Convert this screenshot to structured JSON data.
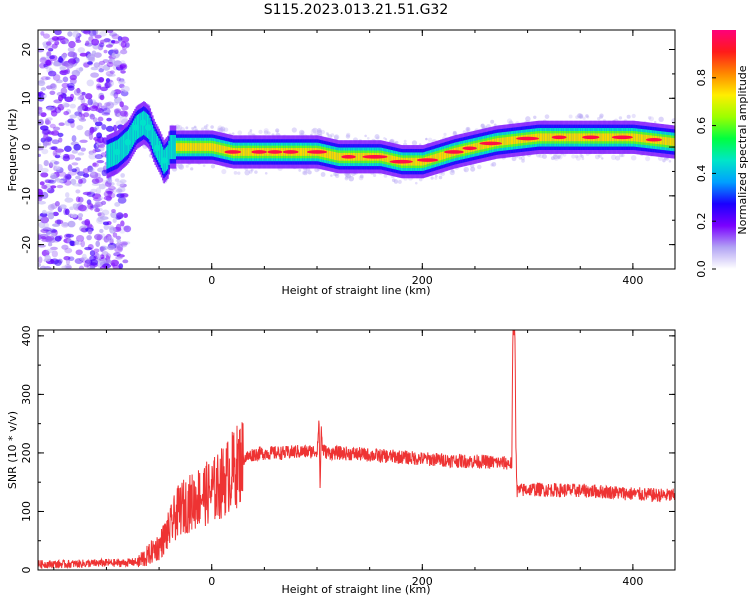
{
  "title": "S115.2023.013.21.51.G32",
  "chart_data": [
    {
      "type": "heatmap",
      "xlabel": "Height of straight line (km)",
      "ylabel": "Frequency (Hz)",
      "xlim": [
        -165,
        440
      ],
      "ylim": [
        -25,
        24
      ],
      "xticks": [
        0,
        200,
        400
      ],
      "yticks": [
        -20,
        -10,
        0,
        10,
        20
      ],
      "grid": false,
      "colorbar": {
        "label": "Normalized spectral amplitude",
        "range": [
          0.0,
          1.0
        ],
        "ticks": [
          0.0,
          0.2,
          0.4,
          0.6,
          0.8
        ],
        "colormap": [
          "#ffffff",
          "#b2a3f4",
          "#7a00ff",
          "#1a00ff",
          "#00a0ff",
          "#00e6c8",
          "#00ff40",
          "#9cff00",
          "#ffee00",
          "#ff8800",
          "#ff1a1a",
          "#ff007a"
        ]
      },
      "ridge": {
        "x": [
          -150,
          -120,
          -100,
          -90,
          -80,
          -72,
          -65,
          -60,
          -55,
          -50,
          -46,
          -42,
          -40,
          -36,
          -30,
          -25,
          -20,
          -10,
          0,
          20,
          40,
          60,
          80,
          100,
          120,
          140,
          160,
          180,
          200,
          215,
          230,
          250,
          270,
          290,
          310,
          340,
          370,
          400,
          420,
          440
        ],
        "y": [
          -4,
          -3,
          -2,
          -1,
          1,
          4,
          5,
          4,
          1,
          -1,
          -3,
          -2,
          0,
          0,
          0,
          0,
          0,
          0,
          0,
          -1,
          -1,
          -1,
          -1,
          -1,
          -2,
          -2,
          -2,
          -3,
          -3,
          -2,
          -1,
          0,
          1,
          1.5,
          2,
          2,
          2,
          2,
          1.5,
          1
        ]
      }
    },
    {
      "type": "line",
      "xlabel": "Height of straight line (km)",
      "ylabel": "SNR (10 * v/v)",
      "xlim": [
        -165,
        440
      ],
      "ylim": [
        0,
        410
      ],
      "xticks": [
        0,
        200,
        400
      ],
      "yticks": [
        0,
        100,
        200,
        300,
        400
      ],
      "grid": false,
      "series": [
        {
          "color": "#ee3333",
          "x": [
            -165,
            -140,
            -120,
            -100,
            -85,
            -70,
            -60,
            -55,
            -50,
            -45,
            -40,
            -35,
            -30,
            -25,
            -20,
            -15,
            -10,
            -5,
            0,
            5,
            10,
            15,
            20,
            25,
            30,
            40,
            50,
            60,
            70,
            80,
            90,
            100,
            101,
            102,
            103,
            104,
            105,
            106,
            110,
            120,
            140,
            160,
            180,
            200,
            220,
            240,
            260,
            275,
            285,
            286,
            287,
            288,
            289,
            290,
            300,
            320,
            340,
            360,
            380,
            400,
            420,
            440
          ],
          "y": [
            10,
            10,
            11,
            12,
            12,
            14,
            25,
            35,
            40,
            55,
            70,
            90,
            105,
            110,
            115,
            120,
            130,
            130,
            135,
            140,
            150,
            160,
            170,
            180,
            190,
            198,
            200,
            200,
            200,
            202,
            202,
            203,
            230,
            250,
            130,
            250,
            210,
            205,
            200,
            200,
            198,
            195,
            193,
            190,
            188,
            186,
            185,
            183,
            182,
            400,
            410,
            405,
            200,
            135,
            138,
            137,
            136,
            135,
            133,
            130,
            128,
            127
          ]
        }
      ]
    }
  ]
}
